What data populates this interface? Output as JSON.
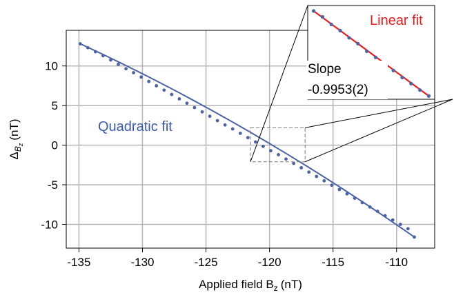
{
  "chart_data": [
    {
      "type": "scatter",
      "title": "",
      "xlabel": "Applied field B",
      "xlabel_sub": "z",
      "xlabel_unit": "(nT)",
      "ylabel": "Δ",
      "ylabel_sub": "B",
      "ylabel_subsub": "z",
      "ylabel_unit": "(nT)",
      "xlim": [
        -136,
        -107
      ],
      "ylim": [
        -13,
        14.5
      ],
      "xticks": [
        -135,
        -130,
        -125,
        -120,
        -115,
        -110
      ],
      "yticks": [
        -10,
        -5,
        0,
        5,
        10
      ],
      "grid": true,
      "fit_label": "Quadratic fit",
      "colors": {
        "data": "#4a62a6",
        "fit": "#4a62a6",
        "fit_label": "#3b57b0",
        "grid": "#b5b5b5",
        "axis": "#000000",
        "zoom_box": "#777777"
      },
      "series": [
        {
          "marker": "dot",
          "x": [
            -134.9,
            -134.3,
            -133.7,
            -133.1,
            -132.5,
            -131.9,
            -131.3,
            -130.7,
            -130.1,
            -129.5,
            -128.9,
            -128.3,
            -127.7,
            -127.1,
            -126.5,
            -125.9,
            -125.3,
            -124.7,
            -124.1,
            -123.5,
            -122.9,
            -122.3,
            -121.7,
            -121.1,
            -120.5,
            -119.9,
            -119.3,
            -118.7,
            -118.1,
            -117.5,
            -116.9,
            -116.3,
            -115.7,
            -115.1,
            -114.5,
            -113.9,
            -113.3,
            -112.7,
            -112.1,
            -111.5,
            -110.9,
            -110.3,
            -109.7,
            -109.1,
            -108.6
          ],
          "y": [
            12.8,
            12.3,
            11.8,
            11.3,
            10.75,
            10.2,
            9.65,
            9.15,
            8.6,
            8.05,
            7.5,
            6.95,
            6.4,
            5.85,
            5.3,
            4.75,
            4.2,
            3.65,
            3.1,
            2.55,
            2.05,
            1.5,
            0.95,
            0.4,
            -0.15,
            -0.7,
            -1.2,
            -1.75,
            -2.3,
            -2.85,
            -3.4,
            -3.95,
            -4.5,
            -5.05,
            -5.6,
            -6.15,
            -6.7,
            -7.25,
            -7.8,
            -8.35,
            -8.9,
            -9.45,
            -10.0,
            -10.55,
            -11.6
          ]
        }
      ],
      "fit": {
        "kind": "quadratic",
        "points": [
          [
            -134.9,
            12.8
          ],
          [
            -121.8,
            1.9
          ],
          [
            -108.6,
            -11.6
          ]
        ]
      },
      "zoom_region": {
        "x": [
          -121.5,
          -117.2
        ],
        "y": [
          -2.1,
          2.2
        ]
      }
    },
    {
      "type": "scatter",
      "role": "inset",
      "fit_label": "Linear fit",
      "annotation_line1": "Slope",
      "annotation_line2": "-0.9953(2)",
      "colors": {
        "data": "#4a62a6",
        "fit": "#ee1c1c",
        "fit_label": "#ee1c1c"
      },
      "xlim": [
        -121.5,
        -117.2
      ],
      "ylim": [
        -2.1,
        2.2
      ],
      "series": [
        {
          "marker": "dot",
          "x": [
            -121.3,
            -121.0,
            -120.7,
            -120.4,
            -120.1,
            -119.8,
            -119.5,
            -119.2,
            -118.9,
            -118.6,
            -118.3,
            -118.0,
            -117.7,
            -117.4
          ],
          "y": [
            1.95,
            1.68,
            1.33,
            1.05,
            0.72,
            0.45,
            0.1,
            -0.18,
            -0.5,
            -0.78,
            -1.1,
            -1.38,
            -1.68,
            -1.95
          ]
        }
      ],
      "fit": {
        "kind": "linear",
        "slope": -0.9953,
        "points": [
          [
            -121.3,
            1.95
          ],
          [
            -117.4,
            -1.95
          ]
        ]
      }
    }
  ]
}
